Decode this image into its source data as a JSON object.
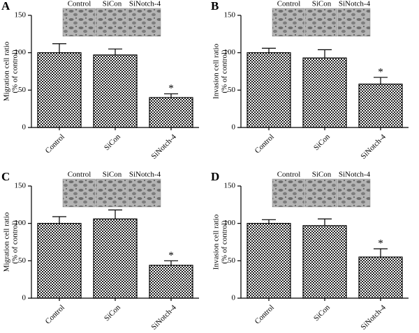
{
  "chart_data": [
    {
      "type": "bar",
      "panel": "A",
      "ylabel": [
        "Migration cell ratio",
        "(% of control)"
      ],
      "image_labels": [
        "Control",
        "SiCon",
        "SiNotch-4"
      ],
      "categories": [
        "Control",
        "SiCon",
        "SiNotch-4"
      ],
      "values": [
        100,
        97,
        40
      ],
      "errors": [
        12,
        8,
        5
      ],
      "significance": [
        null,
        null,
        "*"
      ],
      "ylim": [
        0,
        150
      ],
      "yticks": [
        0,
        50,
        100,
        150
      ]
    },
    {
      "type": "bar",
      "panel": "B",
      "ylabel": [
        "Invasion cell ratio",
        "(% of control)"
      ],
      "image_labels": [
        "Control",
        "SiCon",
        "SiNotch-4"
      ],
      "categories": [
        "Control",
        "SiCon",
        "SiNotch-4"
      ],
      "values": [
        100,
        93,
        58
      ],
      "errors": [
        6,
        11,
        9
      ],
      "significance": [
        null,
        null,
        "*"
      ],
      "ylim": [
        0,
        150
      ],
      "yticks": [
        0,
        50,
        100,
        150
      ]
    },
    {
      "type": "bar",
      "panel": "C",
      "ylabel": [
        "Migration cell ratio",
        "(% of control)"
      ],
      "image_labels": [
        "Control",
        "SiCon",
        "SiNotch-4"
      ],
      "categories": [
        "Control",
        "SiCon",
        "SiNotch-4"
      ],
      "values": [
        100,
        106,
        44
      ],
      "errors": [
        9,
        12,
        6
      ],
      "significance": [
        null,
        null,
        "*"
      ],
      "ylim": [
        0,
        150
      ],
      "yticks": [
        0,
        50,
        100,
        150
      ]
    },
    {
      "type": "bar",
      "panel": "D",
      "ylabel": [
        "Invasion cell ratio",
        "(% of control)"
      ],
      "image_labels": [
        "Control",
        "SiCon",
        "SiNotch-4"
      ],
      "categories": [
        "Control",
        "SiCon",
        "SiNotch-4"
      ],
      "values": [
        100,
        97,
        55
      ],
      "errors": [
        5,
        9,
        11
      ],
      "significance": [
        null,
        null,
        "*"
      ],
      "ylim": [
        0,
        150
      ],
      "yticks": [
        0,
        50,
        100,
        150
      ]
    }
  ]
}
